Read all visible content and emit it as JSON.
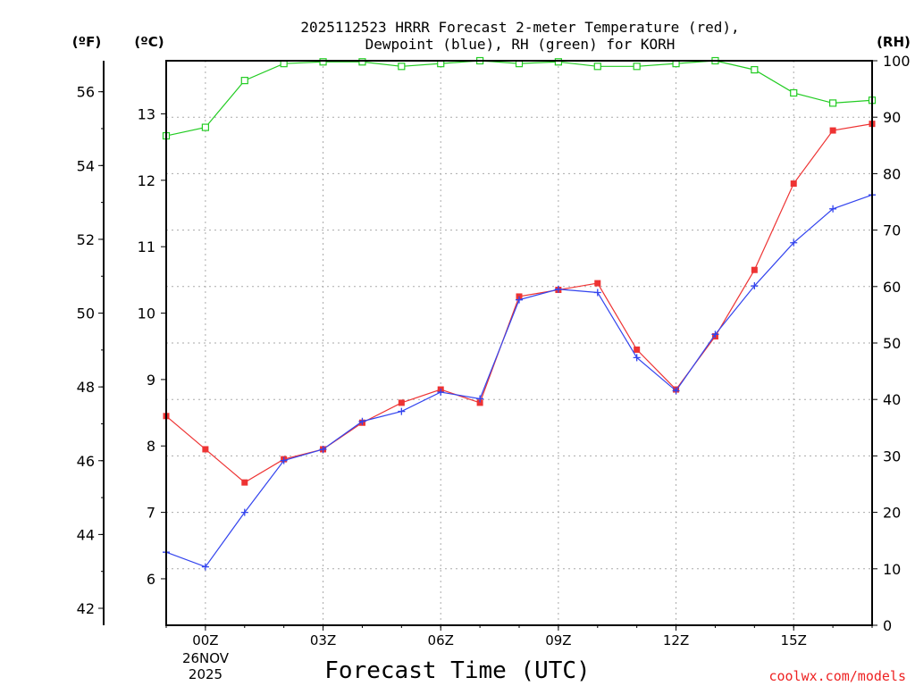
{
  "chart_data": {
    "type": "line",
    "title_line1": "2025112523 HRRR Forecast 2-meter Temperature (red),",
    "title_line2": "Dewpoint (blue), RH (green) for KORH",
    "xlabel": "Forecast Time (UTC)",
    "watermark": "coolwx.com/models",
    "left_outer_axis_label": "(ºF)",
    "left_inner_axis_label": "(ºC)",
    "right_axis_label": "(RH)",
    "x_tick_labels": [
      "00Z",
      "03Z",
      "06Z",
      "09Z",
      "12Z",
      "15Z"
    ],
    "x_tick_hours": [
      0,
      3,
      6,
      9,
      12,
      15
    ],
    "x_date_label_line1": "26NOV",
    "x_date_label_line2": "2025",
    "xlim_hours": [
      -1,
      17
    ],
    "celsius_ylim": [
      5.3,
      13.8
    ],
    "celsius_ticks": [
      6,
      7,
      8,
      9,
      10,
      11,
      12,
      13
    ],
    "fahrenheit_ticks": [
      42,
      44,
      46,
      48,
      50,
      52,
      54,
      56
    ],
    "rh_ylim": [
      0,
      100
    ],
    "rh_ticks": [
      0,
      10,
      20,
      30,
      40,
      50,
      60,
      70,
      80,
      90,
      100
    ],
    "hours": [
      -1,
      0,
      1,
      2,
      3,
      4,
      5,
      6,
      7,
      8,
      9,
      10,
      11,
      12,
      13,
      14,
      15,
      16,
      17
    ],
    "series": [
      {
        "name": "Temperature",
        "unit": "C",
        "color": "#ee3333",
        "marker": "filled-square",
        "values": [
          8.45,
          7.95,
          7.45,
          7.8,
          7.95,
          8.35,
          8.65,
          8.85,
          8.65,
          10.25,
          10.35,
          10.45,
          9.45,
          8.85,
          9.65,
          10.65,
          11.95,
          12.75,
          12.85
        ]
      },
      {
        "name": "Dewpoint",
        "unit": "C",
        "color": "#3344ee",
        "marker": "plus",
        "values": [
          6.4,
          6.18,
          7.0,
          7.78,
          7.95,
          8.37,
          8.52,
          8.81,
          8.71,
          10.2,
          10.36,
          10.31,
          9.33,
          8.83,
          9.68,
          10.41,
          11.06,
          11.57,
          11.78
        ]
      },
      {
        "name": "RH",
        "unit": "%",
        "color": "#22cc22",
        "marker": "open-square",
        "values": [
          86.7,
          88.2,
          96.5,
          99.5,
          99.8,
          99.8,
          99.0,
          99.5,
          100,
          99.5,
          99.8,
          99.0,
          99.0,
          99.5,
          100,
          98.4,
          94.3,
          92.5,
          93.0
        ]
      }
    ]
  }
}
